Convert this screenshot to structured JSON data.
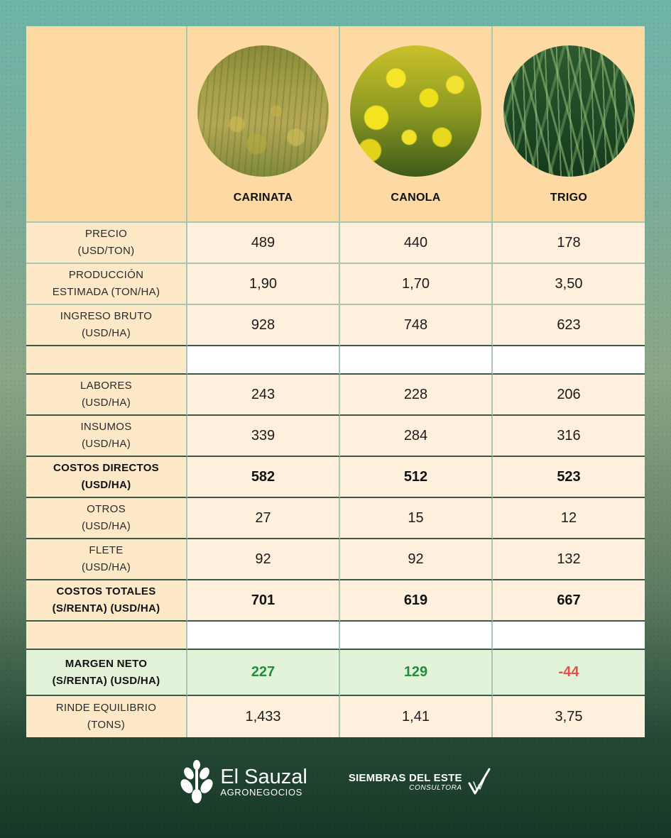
{
  "header": {
    "crops": [
      {
        "name": "CARINATA",
        "photo": "carinata-field-photo"
      },
      {
        "name": "CANOLA",
        "photo": "canola-flowers-photo"
      },
      {
        "name": "TRIGO",
        "photo": "wheat-plants-photo"
      }
    ]
  },
  "rows": [
    {
      "label_1": "PRECIO",
      "label_2": "(USD/TON)",
      "values": [
        "489",
        "440",
        "178"
      ]
    },
    {
      "label_1": "PRODUCCIÓN",
      "label_2": "ESTIMADA (TON/HA)",
      "values": [
        "1,90",
        "1,70",
        "3,50"
      ]
    },
    {
      "label_1": "INGRESO BRUTO",
      "label_2": "(USD/HA)",
      "values": [
        "928",
        "748",
        "623"
      ]
    },
    {
      "label_1": "LABORES",
      "label_2": "(USD/HA)",
      "values": [
        "243",
        "228",
        "206"
      ]
    },
    {
      "label_1": "INSUMOS",
      "label_2": "(USD/HA)",
      "values": [
        "339",
        "284",
        "316"
      ]
    },
    {
      "label_1": "COSTOS DIRECTOS",
      "label_2": "(USD/HA)",
      "values": [
        "582",
        "512",
        "523"
      ]
    },
    {
      "label_1": "OTROS",
      "label_2": "(USD/HA)",
      "values": [
        "27",
        "15",
        "12"
      ]
    },
    {
      "label_1": "FLETE",
      "label_2": "(USD/HA)",
      "values": [
        "92",
        "92",
        "132"
      ]
    },
    {
      "label_1": "COSTOS TOTALES",
      "label_2": "(S/RENTA) (USD/HA)",
      "values": [
        "701",
        "619",
        "667"
      ]
    },
    {
      "label_1": "MARGEN NETO",
      "label_2": "(S/RENTA) (USD/HA)",
      "values": [
        "227",
        "129",
        "-44"
      ]
    },
    {
      "label_1": "RINDE EQUILIBRIO",
      "label_2": "(TONS)",
      "values": [
        "1,433",
        "1,41",
        "3,75"
      ]
    }
  ],
  "colors": {
    "positive": "#1f8f3a",
    "negative": "#e05048",
    "header_bg": "#fdd9a4",
    "margin_bg": "#e2f3d9"
  },
  "footer": {
    "brand1_name": "El Sauzal",
    "brand1_sub": "AGRONEGOCIOS",
    "brand1_icon": "wheat-leaf-logo-icon",
    "brand2_name": "SIEMBRAS DEL ESTE",
    "brand2_sub": "CONSULTORA",
    "brand2_icon": "check-leaf-logo-icon"
  }
}
